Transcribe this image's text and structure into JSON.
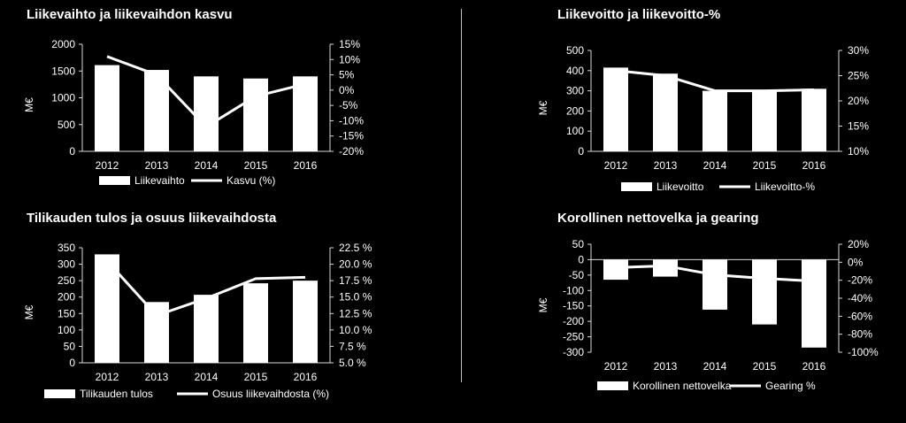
{
  "chart_data": [
    {
      "id": "c1",
      "type": "bar",
      "title": "Liikevaihto ja liikevaihdon kasvu",
      "categories": [
        "2012",
        "2013",
        "2014",
        "2015",
        "2016"
      ],
      "series": [
        {
          "name": "Liikevaihto",
          "type": "bar",
          "axis": "left",
          "values": [
            1610,
            1520,
            1400,
            1360,
            1400
          ]
        },
        {
          "name": "Kasvu (%)",
          "type": "line",
          "axis": "right",
          "values": [
            11,
            5,
            -12,
            -2,
            2
          ]
        }
      ],
      "ylabel": "M€",
      "ylim": [
        0,
        2000
      ],
      "y_ticks": [
        "0",
        "500",
        "1000",
        "1500",
        "2000"
      ],
      "y2lim": [
        -20,
        15
      ],
      "y2_ticks": [
        "-20%",
        "-15%",
        "-10%",
        "-5%",
        "0%",
        "5%",
        "10%",
        "15%"
      ],
      "legend": "bottom",
      "grid": false
    },
    {
      "id": "c2",
      "type": "bar",
      "title": "Liikevoitto ja liikevoitto-%",
      "categories": [
        "2012",
        "2013",
        "2014",
        "2015",
        "2016"
      ],
      "series": [
        {
          "name": "Liikevoitto",
          "type": "bar",
          "axis": "left",
          "values": [
            415,
            385,
            300,
            300,
            310
          ]
        },
        {
          "name": "Liikevoitto-%",
          "type": "line",
          "axis": "right",
          "values": [
            26,
            25,
            22,
            22,
            22.2
          ]
        }
      ],
      "ylabel": "M€",
      "ylim": [
        0,
        500
      ],
      "y_ticks": [
        "0",
        "100",
        "200",
        "300",
        "400",
        "500"
      ],
      "y2lim": [
        10,
        30
      ],
      "y2_ticks": [
        "10%",
        "15%",
        "20%",
        "25%",
        "30%"
      ],
      "legend": "bottom",
      "grid": false
    },
    {
      "id": "c3",
      "type": "bar",
      "title": "Tilikauden tulos ja osuus liikevaihdosta",
      "categories": [
        "2012",
        "2013",
        "2014",
        "2015",
        "2016"
      ],
      "series": [
        {
          "name": "Tilikauden tulos",
          "type": "bar",
          "axis": "left",
          "values": [
            330,
            185,
            207,
            242,
            250
          ]
        },
        {
          "name": "Osuus liikevaihdosta (%)",
          "type": "line",
          "axis": "right",
          "values": [
            20.5,
            12.2,
            14.8,
            17.8,
            18.0
          ]
        }
      ],
      "ylabel": "M€",
      "ylim": [
        0,
        350
      ],
      "y_ticks": [
        "0",
        "50",
        "100",
        "150",
        "200",
        "250",
        "300",
        "350"
      ],
      "y2lim": [
        5,
        22.5
      ],
      "y2_ticks": [
        "5.0 %",
        "7.5 %",
        "10.0 %",
        "12.5 %",
        "15.0 %",
        "17.5 %",
        "20.0 %",
        "22.5 %"
      ],
      "legend": "bottom",
      "grid": false
    },
    {
      "id": "c4",
      "type": "bar",
      "title": "Korollinen nettovelka ja gearing",
      "categories": [
        "2012",
        "2013",
        "2014",
        "2015",
        "2016"
      ],
      "series": [
        {
          "name": "Korollinen nettovelka",
          "type": "bar",
          "axis": "left",
          "values": [
            -65,
            -55,
            -162,
            -210,
            -285
          ]
        },
        {
          "name": "Gearing %",
          "type": "line",
          "axis": "right",
          "values": [
            -6,
            -4,
            -14,
            -18,
            -21
          ]
        }
      ],
      "ylabel": "M€",
      "ylim": [
        -300,
        50
      ],
      "y_ticks": [
        "-300",
        "-250",
        "-200",
        "-150",
        "-100",
        "-50",
        "0",
        "50"
      ],
      "y2lim": [
        -100,
        20
      ],
      "y2_ticks": [
        "-100%",
        "-80%",
        "-60%",
        "-40%",
        "-20%",
        "0%",
        "20%"
      ],
      "legend": "bottom",
      "grid": false
    }
  ]
}
